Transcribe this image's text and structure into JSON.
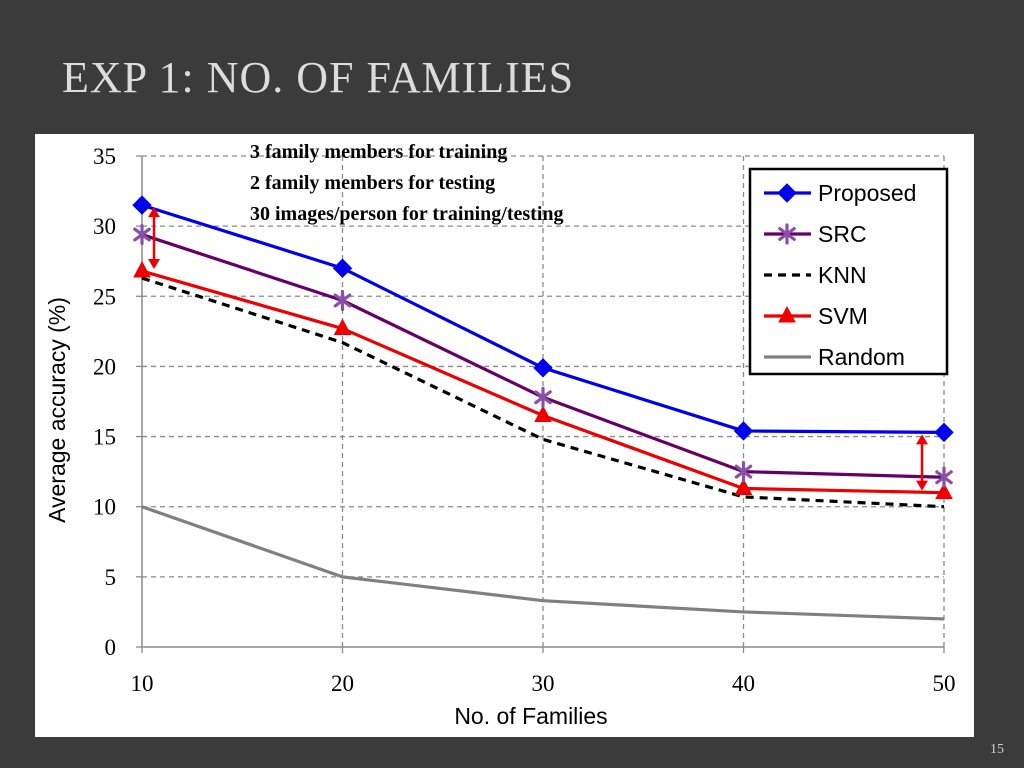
{
  "slide": {
    "title": "EXP 1: NO. OF FAMILIES",
    "page_number": "15"
  },
  "chart_data": {
    "type": "line",
    "title": "",
    "annotation_lines": [
      "3 family members for training",
      "2 family members for testing",
      "30 images/person for training/testing"
    ],
    "xlabel": "No. of Families",
    "ylabel": "Average accuracy (%)",
    "x": [
      10,
      20,
      30,
      40,
      50
    ],
    "xlim": [
      10,
      50
    ],
    "ylim": [
      0,
      35
    ],
    "yticks": [
      0,
      5,
      10,
      15,
      20,
      25,
      30,
      35
    ],
    "grid": true,
    "legend_position": "top-right",
    "series": [
      {
        "name": "Proposed",
        "values": [
          31.5,
          27.0,
          19.9,
          15.4,
          15.3
        ],
        "color": "#0000ee",
        "style": "solid",
        "marker": "diamond"
      },
      {
        "name": "SRC",
        "values": [
          29.4,
          24.7,
          17.8,
          12.5,
          12.1
        ],
        "color": "#660066",
        "style": "solid",
        "marker": "asterisk"
      },
      {
        "name": "KNN",
        "values": [
          26.3,
          21.7,
          14.8,
          10.7,
          10.0
        ],
        "color": "#000000",
        "style": "dashed",
        "marker": "none"
      },
      {
        "name": "SVM",
        "values": [
          26.8,
          22.7,
          16.5,
          11.3,
          11.0
        ],
        "color": "#ee0000",
        "style": "solid",
        "marker": "triangle"
      },
      {
        "name": "Random",
        "values": [
          10.0,
          5.0,
          3.3,
          2.5,
          2.0
        ],
        "color": "#808080",
        "style": "solid",
        "marker": "none"
      }
    ],
    "gap_arrows": [
      {
        "x": 10,
        "from": 26.8,
        "to": 31.5
      },
      {
        "x": 50,
        "from": 11.0,
        "to": 15.3
      }
    ],
    "gap_arrow_color": "#ee0000"
  }
}
